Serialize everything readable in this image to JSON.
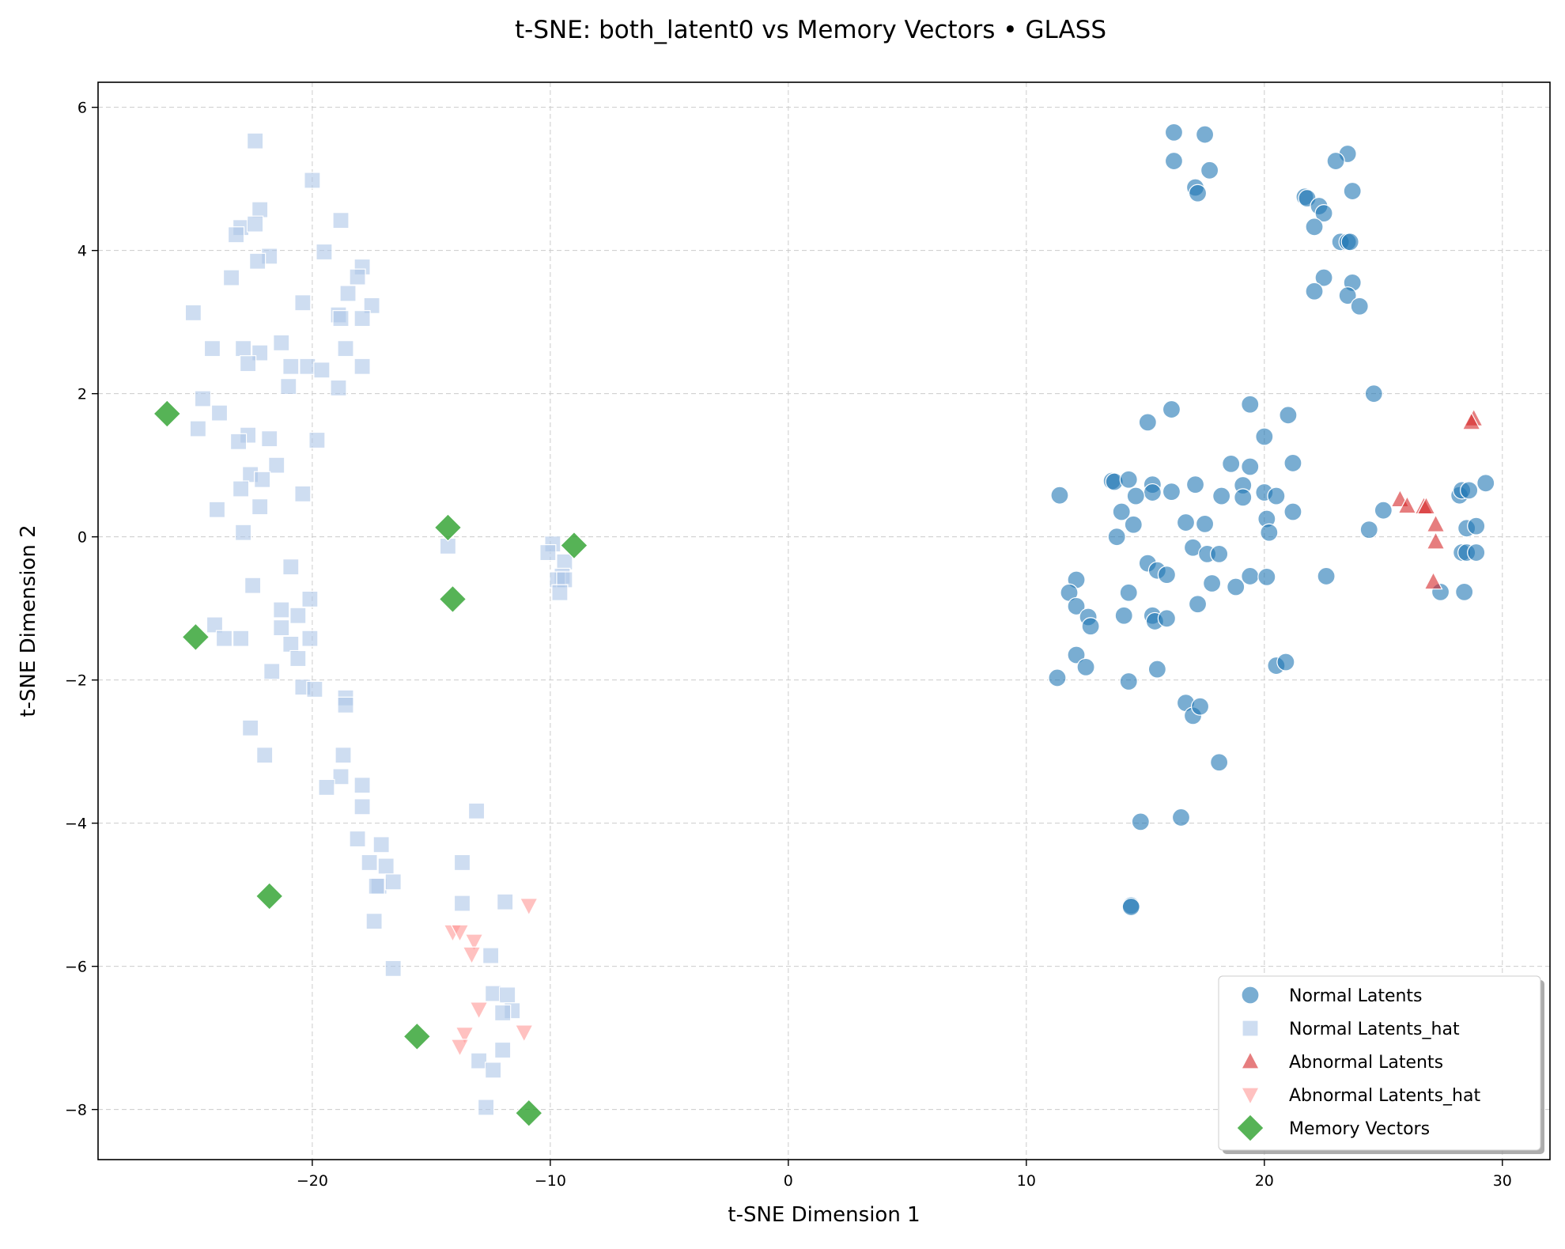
{
  "chart_data": {
    "type": "scatter",
    "title": "t-SNE: both_latent0 vs Memory Vectors • GLASS",
    "xlabel": "t-SNE Dimension 1",
    "ylabel": "t-SNE Dimension 2",
    "xlim": [
      -29,
      32
    ],
    "ylim": [
      -8.7,
      6.35
    ],
    "xticks": [
      -20,
      -10,
      0,
      10,
      20,
      30
    ],
    "yticks": [
      -8,
      -6,
      -4,
      -2,
      0,
      2,
      4,
      6
    ],
    "grid": true,
    "legend_position": "lower-right",
    "series": [
      {
        "name": "Normal Latents",
        "marker": "circle",
        "color": "#1f77b4",
        "opacity": 0.6,
        "points": [
          [
            16.2,
            5.65
          ],
          [
            17.5,
            5.62
          ],
          [
            16.2,
            5.25
          ],
          [
            17.7,
            5.12
          ],
          [
            17.1,
            4.88
          ],
          [
            17.2,
            4.8
          ],
          [
            23.5,
            5.35
          ],
          [
            23.0,
            5.25
          ],
          [
            23.7,
            4.83
          ],
          [
            21.7,
            4.75
          ],
          [
            21.8,
            4.73
          ],
          [
            22.3,
            4.62
          ],
          [
            22.5,
            4.52
          ],
          [
            22.1,
            4.33
          ],
          [
            23.2,
            4.12
          ],
          [
            23.5,
            4.12
          ],
          [
            23.6,
            4.12
          ],
          [
            22.5,
            3.62
          ],
          [
            23.7,
            3.55
          ],
          [
            22.1,
            3.43
          ],
          [
            23.5,
            3.37
          ],
          [
            24.0,
            3.22
          ],
          [
            24.6,
            2.0
          ],
          [
            15.1,
            1.6
          ],
          [
            16.1,
            1.78
          ],
          [
            19.4,
            1.85
          ],
          [
            21.0,
            1.7
          ],
          [
            20.0,
            1.4
          ],
          [
            18.6,
            1.02
          ],
          [
            19.4,
            0.98
          ],
          [
            21.2,
            1.03
          ],
          [
            13.6,
            0.78
          ],
          [
            13.7,
            0.77
          ],
          [
            14.3,
            0.8
          ],
          [
            15.3,
            0.73
          ],
          [
            17.1,
            0.73
          ],
          [
            19.1,
            0.72
          ],
          [
            15.3,
            0.62
          ],
          [
            16.1,
            0.63
          ],
          [
            18.2,
            0.57
          ],
          [
            19.1,
            0.55
          ],
          [
            20.0,
            0.62
          ],
          [
            20.5,
            0.57
          ],
          [
            14.6,
            0.57
          ],
          [
            11.4,
            0.58
          ],
          [
            14.0,
            0.35
          ],
          [
            21.2,
            0.35
          ],
          [
            20.1,
            0.25
          ],
          [
            14.5,
            0.17
          ],
          [
            16.7,
            0.2
          ],
          [
            17.5,
            0.18
          ],
          [
            20.2,
            0.06
          ],
          [
            25.0,
            0.37
          ],
          [
            24.4,
            0.1
          ],
          [
            13.8,
            0.0
          ],
          [
            17.0,
            -0.15
          ],
          [
            17.6,
            -0.24
          ],
          [
            18.1,
            -0.24
          ],
          [
            15.1,
            -0.37
          ],
          [
            15.5,
            -0.47
          ],
          [
            15.9,
            -0.53
          ],
          [
            19.4,
            -0.55
          ],
          [
            20.1,
            -0.56
          ],
          [
            22.6,
            -0.55
          ],
          [
            12.1,
            -0.6
          ],
          [
            17.8,
            -0.65
          ],
          [
            18.8,
            -0.7
          ],
          [
            11.8,
            -0.78
          ],
          [
            14.3,
            -0.78
          ],
          [
            17.2,
            -0.94
          ],
          [
            12.1,
            -0.97
          ],
          [
            14.1,
            -1.1
          ],
          [
            15.3,
            -1.1
          ],
          [
            15.4,
            -1.18
          ],
          [
            15.9,
            -1.14
          ],
          [
            12.6,
            -1.12
          ],
          [
            12.7,
            -1.25
          ],
          [
            12.1,
            -1.65
          ],
          [
            12.5,
            -1.82
          ],
          [
            20.5,
            -1.8
          ],
          [
            20.9,
            -1.75
          ],
          [
            15.5,
            -1.85
          ],
          [
            11.3,
            -1.97
          ],
          [
            14.3,
            -2.02
          ],
          [
            16.7,
            -2.32
          ],
          [
            17.0,
            -2.5
          ],
          [
            17.3,
            -2.37
          ],
          [
            18.1,
            -3.15
          ],
          [
            14.8,
            -3.98
          ],
          [
            16.5,
            -3.92
          ],
          [
            14.4,
            -5.15
          ],
          [
            14.4,
            -5.17
          ],
          [
            28.2,
            0.58
          ],
          [
            28.3,
            0.65
          ],
          [
            28.6,
            0.65
          ],
          [
            29.3,
            0.75
          ],
          [
            28.5,
            0.12
          ],
          [
            28.9,
            0.15
          ],
          [
            28.3,
            -0.22
          ],
          [
            28.5,
            -0.22
          ],
          [
            28.9,
            -0.22
          ],
          [
            27.4,
            -0.77
          ],
          [
            28.4,
            -0.77
          ]
        ]
      },
      {
        "name": "Normal Latents_hat",
        "marker": "square",
        "color": "#aec7e8",
        "opacity": 0.6,
        "points": [
          [
            -22.4,
            5.53
          ],
          [
            -20.0,
            4.98
          ],
          [
            -22.2,
            4.57
          ],
          [
            -18.8,
            4.42
          ],
          [
            -23.0,
            4.32
          ],
          [
            -22.4,
            4.37
          ],
          [
            -23.2,
            4.22
          ],
          [
            -19.5,
            3.98
          ],
          [
            -21.8,
            3.92
          ],
          [
            -22.3,
            3.85
          ],
          [
            -17.9,
            3.77
          ],
          [
            -18.1,
            3.63
          ],
          [
            -23.4,
            3.62
          ],
          [
            -18.5,
            3.4
          ],
          [
            -20.4,
            3.27
          ],
          [
            -17.5,
            3.23
          ],
          [
            -25.0,
            3.13
          ],
          [
            -18.9,
            3.1
          ],
          [
            -18.8,
            3.05
          ],
          [
            -17.9,
            3.05
          ],
          [
            -21.3,
            2.71
          ],
          [
            -24.2,
            2.63
          ],
          [
            -22.9,
            2.63
          ],
          [
            -18.6,
            2.63
          ],
          [
            -22.2,
            2.57
          ],
          [
            -22.7,
            2.42
          ],
          [
            -20.9,
            2.38
          ],
          [
            -20.2,
            2.38
          ],
          [
            -19.6,
            2.33
          ],
          [
            -17.9,
            2.38
          ],
          [
            -21.0,
            2.1
          ],
          [
            -18.9,
            2.08
          ],
          [
            -24.6,
            1.93
          ],
          [
            -23.9,
            1.73
          ],
          [
            -24.8,
            1.51
          ],
          [
            -22.7,
            1.42
          ],
          [
            -23.1,
            1.33
          ],
          [
            -21.8,
            1.37
          ],
          [
            -19.8,
            1.35
          ],
          [
            -21.5,
            1.0
          ],
          [
            -22.6,
            0.87
          ],
          [
            -22.1,
            0.8
          ],
          [
            -23.0,
            0.67
          ],
          [
            -20.4,
            0.6
          ],
          [
            -22.2,
            0.42
          ],
          [
            -24.0,
            0.38
          ],
          [
            -22.9,
            0.06
          ],
          [
            -14.3,
            -0.13
          ],
          [
            -9.9,
            -0.1
          ],
          [
            -10.1,
            -0.22
          ],
          [
            -9.4,
            -0.35
          ],
          [
            -9.5,
            -0.55
          ],
          [
            -9.7,
            -0.6
          ],
          [
            -9.4,
            -0.6
          ],
          [
            -9.6,
            -0.78
          ],
          [
            -20.9,
            -0.42
          ],
          [
            -22.5,
            -0.68
          ],
          [
            -20.1,
            -0.87
          ],
          [
            -21.3,
            -1.02
          ],
          [
            -20.6,
            -1.1
          ],
          [
            -21.3,
            -1.27
          ],
          [
            -24.1,
            -1.23
          ],
          [
            -23.7,
            -1.42
          ],
          [
            -23.0,
            -1.42
          ],
          [
            -20.1,
            -1.42
          ],
          [
            -20.9,
            -1.5
          ],
          [
            -20.6,
            -1.7
          ],
          [
            -21.7,
            -1.88
          ],
          [
            -20.4,
            -2.1
          ],
          [
            -19.9,
            -2.13
          ],
          [
            -18.6,
            -2.25
          ],
          [
            -18.6,
            -2.35
          ],
          [
            -22.6,
            -2.67
          ],
          [
            -22.0,
            -3.05
          ],
          [
            -18.7,
            -3.05
          ],
          [
            -18.8,
            -3.35
          ],
          [
            -19.4,
            -3.5
          ],
          [
            -17.9,
            -3.47
          ],
          [
            -17.9,
            -3.77
          ],
          [
            -18.1,
            -4.22
          ],
          [
            -17.1,
            -4.3
          ],
          [
            -17.6,
            -4.55
          ],
          [
            -16.9,
            -4.6
          ],
          [
            -17.2,
            -4.88
          ],
          [
            -17.3,
            -4.88
          ],
          [
            -16.6,
            -4.82
          ],
          [
            -17.4,
            -5.37
          ],
          [
            -16.6,
            -6.03
          ],
          [
            -13.1,
            -3.83
          ],
          [
            -13.7,
            -4.55
          ],
          [
            -13.7,
            -5.12
          ],
          [
            -11.9,
            -5.1
          ],
          [
            -12.5,
            -5.85
          ],
          [
            -12.4,
            -6.38
          ],
          [
            -11.8,
            -6.4
          ],
          [
            -11.6,
            -6.62
          ],
          [
            -12.0,
            -6.65
          ],
          [
            -13.0,
            -7.32
          ],
          [
            -12.0,
            -7.17
          ],
          [
            -12.4,
            -7.45
          ],
          [
            -12.7,
            -7.97
          ]
        ]
      },
      {
        "name": "Abnormal Latents",
        "marker": "triangle-up",
        "color": "#d62728",
        "opacity": 0.6,
        "points": [
          [
            28.8,
            1.65
          ],
          [
            28.7,
            1.6
          ],
          [
            25.7,
            0.52
          ],
          [
            26.0,
            0.43
          ],
          [
            26.7,
            0.42
          ],
          [
            26.8,
            0.42
          ],
          [
            27.2,
            0.17
          ],
          [
            27.2,
            -0.07
          ],
          [
            27.1,
            -0.63
          ]
        ]
      },
      {
        "name": "Abnormal Latents_hat",
        "marker": "triangle-down",
        "color": "#ff9896",
        "opacity": 0.6,
        "points": [
          [
            -10.9,
            -5.15
          ],
          [
            -14.1,
            -5.52
          ],
          [
            -13.8,
            -5.52
          ],
          [
            -13.2,
            -5.65
          ],
          [
            -13.3,
            -5.83
          ],
          [
            -13.0,
            -6.6
          ],
          [
            -13.6,
            -6.95
          ],
          [
            -11.1,
            -6.92
          ],
          [
            -13.8,
            -7.12
          ]
        ]
      },
      {
        "name": "Memory Vectors",
        "marker": "diamond",
        "color": "#2ca02c",
        "opacity": 0.8,
        "points": [
          [
            -26.1,
            1.72
          ],
          [
            -14.3,
            0.13
          ],
          [
            -9.0,
            -0.12
          ],
          [
            -14.1,
            -0.87
          ],
          [
            -24.9,
            -1.4
          ],
          [
            -21.8,
            -5.02
          ],
          [
            -15.6,
            -6.98
          ],
          [
            -10.9,
            -8.05
          ]
        ]
      }
    ]
  }
}
